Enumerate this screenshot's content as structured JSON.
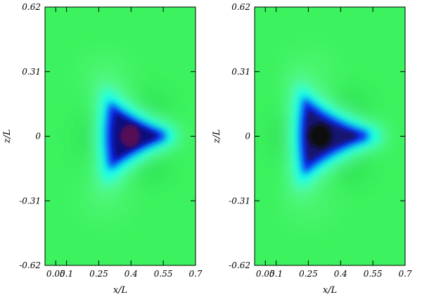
{
  "chart_data": [
    {
      "type": "heatmap",
      "xlabel": "x/L",
      "ylabel": "z/L",
      "xlim": [
        0.0,
        0.7
      ],
      "ylim": [
        -0.62,
        0.62
      ],
      "x_ticks": [
        "0.05",
        "0.1",
        "0.25",
        "0.4",
        "0.55",
        "0.7"
      ],
      "x_tick_values": [
        0.05,
        0.1,
        0.25,
        0.4,
        0.55,
        0.7
      ],
      "y_ticks": [
        "0.62",
        "0.31",
        "0",
        "-0.31",
        "-0.62"
      ],
      "y_tick_values": [
        0.62,
        0.31,
        0.0,
        -0.31,
        -0.62
      ],
      "feature": {
        "shape": "three-lobed minimum (triangular, pointing toward +x)",
        "center_x": 0.345,
        "center_z": 0.0,
        "min_color": "#4a0f4a",
        "lobe_tips": [
          [
            0.2,
            0.13
          ],
          [
            0.2,
            -0.13
          ],
          [
            0.52,
            0.0
          ]
        ]
      },
      "colors": {
        "background": "#3cf25e",
        "ring": "#00ffff",
        "core": "#0000cc",
        "center": "#551155"
      }
    },
    {
      "type": "heatmap",
      "xlabel": "x/L",
      "ylabel": "z/L",
      "xlim": [
        0.0,
        0.7
      ],
      "ylim": [
        -0.62,
        0.62
      ],
      "x_ticks": [
        "0.05",
        "0.1",
        "0.25",
        "0.4",
        "0.55",
        "0.7"
      ],
      "x_tick_values": [
        0.05,
        0.1,
        0.25,
        0.4,
        0.55,
        0.7
      ],
      "y_ticks": [
        "0.62",
        "0.31",
        "0",
        "-0.31",
        "-0.62"
      ],
      "y_tick_values": [
        0.62,
        0.31,
        0.0,
        -0.31,
        -0.62
      ],
      "feature": {
        "shape": "three-lobed minimum (triangular, pointing toward +x)",
        "center_x": 0.285,
        "center_z": 0.0,
        "min_color": "#080808",
        "lobe_tips": [
          [
            0.22,
            0.14
          ],
          [
            0.22,
            -0.14
          ],
          [
            0.5,
            0.0
          ]
        ]
      },
      "colors": {
        "background": "#3cf25e",
        "ring": "#00ffff",
        "core": "#0000cc",
        "center": "#0a0a0a"
      }
    }
  ]
}
